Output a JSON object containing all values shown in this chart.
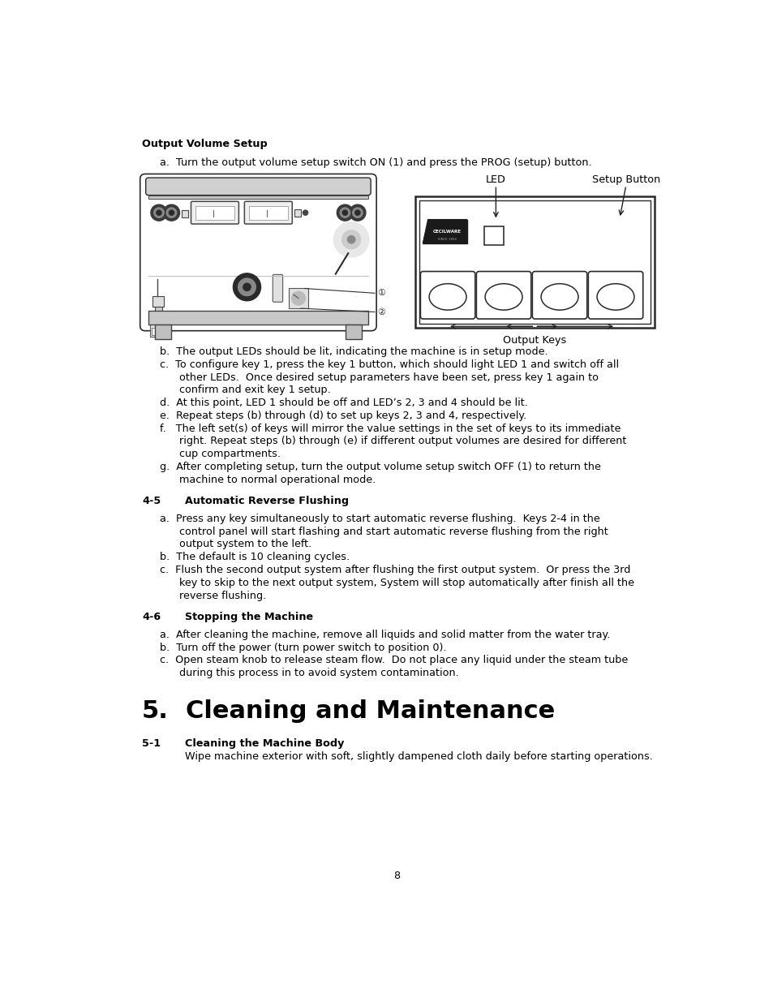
{
  "page_width": 9.54,
  "page_height": 12.35,
  "bg_color": "#ffffff",
  "text_color": "#000000",
  "lm": 0.72,
  "indent1": 1.1,
  "indent2": 1.3,
  "section_heading": "Output Volume Setup",
  "item_a_text": "a.  Turn the output volume setup switch ON (1) and press the PROG (setup) button.",
  "item_b_text": "b.  The output LEDs should be lit, indicating the machine is in setup mode.",
  "item_c1": "c.  To configure key 1, press the key 1 button, which should light LED 1 and switch off all",
  "item_c2": "      other LEDs.  Once desired setup parameters have been set, press key 1 again to",
  "item_c3": "      confirm and exit key 1 setup.",
  "item_d_text": "d.  At this point, LED 1 should be off and LED’s 2, 3 and 4 should be lit.",
  "item_e_text": "e.  Repeat steps (b) through (d) to set up keys 2, 3 and 4, respectively.",
  "item_f1": "f.   The left set(s) of keys will mirror the value settings in the set of keys to its immediate",
  "item_f2": "      right. Repeat steps (b) through (e) if different output volumes are desired for different",
  "item_f3": "      cup compartments.",
  "item_g1": "g.  After completing setup, turn the output volume setup switch OFF (1) to return the",
  "item_g2": "      machine to normal operational mode.",
  "section_45": "4-5",
  "section_45_title": "Automatic Reverse Flushing",
  "item_45a1": "a.  Press any key simultaneously to start automatic reverse flushing.  Keys 2-4 in the",
  "item_45a2": "      control panel will start flashing and start automatic reverse flushing from the right",
  "item_45a3": "      output system to the left.",
  "item_45b": "b.  The default is 10 cleaning cycles.",
  "item_45c1": "c.  Flush the second output system after flushing the first output system.  Or press the 3rd",
  "item_45c2": "      key to skip to the next output system, System will stop automatically after finish all the",
  "item_45c3": "      reverse flushing.",
  "section_46": "4-6",
  "section_46_title": "Stopping the Machine",
  "item_46a": "a.  After cleaning the machine, remove all liquids and solid matter from the water tray.",
  "item_46b": "b.  Turn off the power (turn power switch to position 0).",
  "item_46c1": "c.  Open steam knob to release steam flow.  Do not place any liquid under the steam tube",
  "item_46c2": "      during this process in to avoid system contamination.",
  "section_5": "5.",
  "section_5_title": "Cleaning and Maintenance",
  "section_51": "5-1",
  "section_51_title": "Cleaning the Machine Body",
  "section_51_text": "Wipe machine exterior with soft, slightly dampened cloth daily before starting operations.",
  "page_number": "8",
  "label_led": "LED",
  "label_setup": "Setup Button",
  "label_output_keys": "Output Keys"
}
